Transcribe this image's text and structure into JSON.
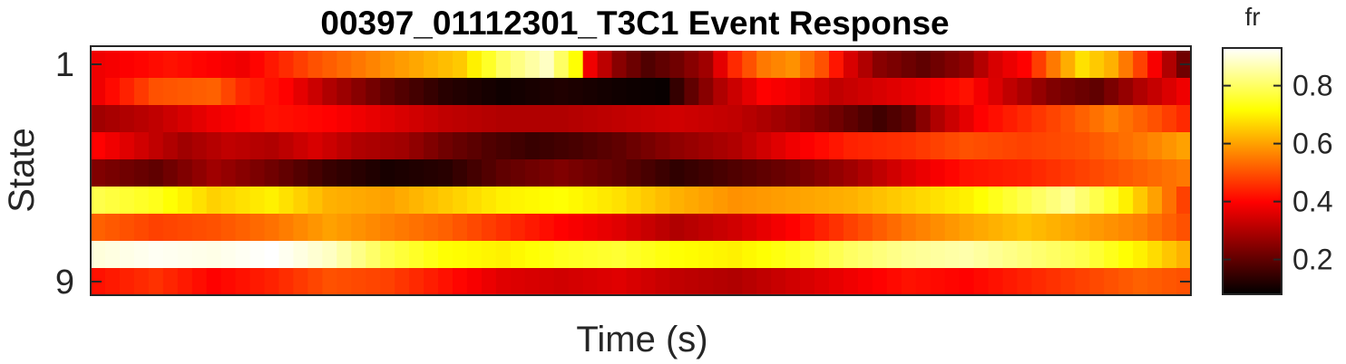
{
  "chart_data": {
    "type": "heatmap",
    "title": "00397_01112301_T3C1 Event Response",
    "xlabel": "Time (s)",
    "ylabel": "State",
    "y_tick_labels": [
      {
        "value": 1,
        "label": "1"
      },
      {
        "value": 9,
        "label": "9"
      }
    ],
    "rows": 9,
    "cols": 76,
    "colormap": "hot",
    "colorbar": {
      "label": "fr",
      "range": [
        0.08,
        0.93
      ],
      "ticks": [
        {
          "value": 0.2,
          "label": "0.2"
        },
        {
          "value": 0.4,
          "label": "0.4"
        },
        {
          "value": 0.6,
          "label": "0.6"
        },
        {
          "value": 0.8,
          "label": "0.8"
        }
      ]
    },
    "row_profiles": [
      {
        "state": 1,
        "anchors": [
          [
            0,
            0.38
          ],
          [
            5,
            0.42
          ],
          [
            10,
            0.38
          ],
          [
            15,
            0.5
          ],
          [
            20,
            0.58
          ],
          [
            25,
            0.65
          ],
          [
            28,
            0.8
          ],
          [
            31,
            0.88
          ],
          [
            33,
            0.72
          ],
          [
            34,
            0.38
          ],
          [
            36,
            0.25
          ],
          [
            38,
            0.18
          ],
          [
            40,
            0.22
          ],
          [
            42,
            0.28
          ],
          [
            44,
            0.45
          ],
          [
            46,
            0.55
          ],
          [
            48,
            0.58
          ],
          [
            50,
            0.5
          ],
          [
            52,
            0.35
          ],
          [
            54,
            0.25
          ],
          [
            57,
            0.2
          ],
          [
            60,
            0.26
          ],
          [
            62,
            0.35
          ],
          [
            64,
            0.4
          ],
          [
            66,
            0.55
          ],
          [
            68,
            0.68
          ],
          [
            70,
            0.62
          ],
          [
            72,
            0.48
          ],
          [
            74,
            0.3
          ],
          [
            75,
            0.22
          ]
        ]
      },
      {
        "state": 2,
        "anchors": [
          [
            0,
            0.38
          ],
          [
            4,
            0.5
          ],
          [
            8,
            0.52
          ],
          [
            10,
            0.45
          ],
          [
            13,
            0.4
          ],
          [
            16,
            0.3
          ],
          [
            20,
            0.2
          ],
          [
            24,
            0.13
          ],
          [
            28,
            0.1
          ],
          [
            32,
            0.12
          ],
          [
            36,
            0.1
          ],
          [
            39,
            0.09
          ],
          [
            41,
            0.2
          ],
          [
            43,
            0.3
          ],
          [
            46,
            0.4
          ],
          [
            48,
            0.38
          ],
          [
            51,
            0.32
          ],
          [
            54,
            0.35
          ],
          [
            57,
            0.38
          ],
          [
            60,
            0.42
          ],
          [
            63,
            0.32
          ],
          [
            66,
            0.24
          ],
          [
            69,
            0.2
          ],
          [
            72,
            0.3
          ],
          [
            75,
            0.38
          ]
        ]
      },
      {
        "state": 3,
        "anchors": [
          [
            0,
            0.28
          ],
          [
            4,
            0.32
          ],
          [
            8,
            0.38
          ],
          [
            12,
            0.42
          ],
          [
            16,
            0.4
          ],
          [
            20,
            0.36
          ],
          [
            24,
            0.32
          ],
          [
            28,
            0.3
          ],
          [
            32,
            0.3
          ],
          [
            36,
            0.32
          ],
          [
            40,
            0.34
          ],
          [
            44,
            0.32
          ],
          [
            48,
            0.27
          ],
          [
            51,
            0.22
          ],
          [
            54,
            0.16
          ],
          [
            56,
            0.2
          ],
          [
            58,
            0.3
          ],
          [
            61,
            0.4
          ],
          [
            64,
            0.45
          ],
          [
            67,
            0.5
          ],
          [
            70,
            0.56
          ],
          [
            73,
            0.5
          ],
          [
            75,
            0.45
          ]
        ]
      },
      {
        "state": 4,
        "anchors": [
          [
            0,
            0.4
          ],
          [
            3,
            0.34
          ],
          [
            6,
            0.28
          ],
          [
            9,
            0.32
          ],
          [
            12,
            0.3
          ],
          [
            15,
            0.35
          ],
          [
            18,
            0.3
          ],
          [
            21,
            0.28
          ],
          [
            24,
            0.22
          ],
          [
            27,
            0.18
          ],
          [
            30,
            0.15
          ],
          [
            33,
            0.17
          ],
          [
            36,
            0.2
          ],
          [
            40,
            0.26
          ],
          [
            44,
            0.3
          ],
          [
            48,
            0.38
          ],
          [
            52,
            0.44
          ],
          [
            56,
            0.46
          ],
          [
            60,
            0.5
          ],
          [
            64,
            0.48
          ],
          [
            68,
            0.5
          ],
          [
            72,
            0.55
          ],
          [
            75,
            0.6
          ]
        ]
      },
      {
        "state": 5,
        "anchors": [
          [
            0,
            0.24
          ],
          [
            4,
            0.2
          ],
          [
            8,
            0.28
          ],
          [
            12,
            0.22
          ],
          [
            16,
            0.15
          ],
          [
            20,
            0.11
          ],
          [
            24,
            0.13
          ],
          [
            28,
            0.2
          ],
          [
            32,
            0.24
          ],
          [
            36,
            0.2
          ],
          [
            40,
            0.14
          ],
          [
            44,
            0.18
          ],
          [
            48,
            0.22
          ],
          [
            52,
            0.28
          ],
          [
            56,
            0.36
          ],
          [
            60,
            0.42
          ],
          [
            64,
            0.44
          ],
          [
            68,
            0.48
          ],
          [
            72,
            0.52
          ],
          [
            75,
            0.55
          ]
        ]
      },
      {
        "state": 6,
        "anchors": [
          [
            0,
            0.78
          ],
          [
            4,
            0.74
          ],
          [
            8,
            0.66
          ],
          [
            12,
            0.7
          ],
          [
            16,
            0.62
          ],
          [
            20,
            0.6
          ],
          [
            24,
            0.65
          ],
          [
            28,
            0.7
          ],
          [
            32,
            0.72
          ],
          [
            36,
            0.68
          ],
          [
            40,
            0.62
          ],
          [
            44,
            0.58
          ],
          [
            48,
            0.6
          ],
          [
            52,
            0.62
          ],
          [
            56,
            0.66
          ],
          [
            60,
            0.7
          ],
          [
            64,
            0.78
          ],
          [
            67,
            0.84
          ],
          [
            70,
            0.75
          ],
          [
            73,
            0.6
          ],
          [
            75,
            0.48
          ]
        ]
      },
      {
        "state": 7,
        "anchors": [
          [
            0,
            0.52
          ],
          [
            4,
            0.48
          ],
          [
            8,
            0.5
          ],
          [
            12,
            0.54
          ],
          [
            16,
            0.6
          ],
          [
            20,
            0.56
          ],
          [
            24,
            0.52
          ],
          [
            28,
            0.46
          ],
          [
            32,
            0.4
          ],
          [
            36,
            0.36
          ],
          [
            40,
            0.3
          ],
          [
            44,
            0.34
          ],
          [
            48,
            0.4
          ],
          [
            52,
            0.48
          ],
          [
            56,
            0.55
          ],
          [
            60,
            0.6
          ],
          [
            64,
            0.64
          ],
          [
            68,
            0.6
          ],
          [
            72,
            0.56
          ],
          [
            75,
            0.5
          ]
        ]
      },
      {
        "state": 8,
        "anchors": [
          [
            0,
            0.9
          ],
          [
            4,
            0.92
          ],
          [
            8,
            0.91
          ],
          [
            12,
            0.93
          ],
          [
            16,
            0.88
          ],
          [
            20,
            0.78
          ],
          [
            24,
            0.72
          ],
          [
            28,
            0.7
          ],
          [
            32,
            0.74
          ],
          [
            36,
            0.76
          ],
          [
            40,
            0.72
          ],
          [
            44,
            0.7
          ],
          [
            48,
            0.74
          ],
          [
            52,
            0.8
          ],
          [
            56,
            0.84
          ],
          [
            60,
            0.86
          ],
          [
            64,
            0.82
          ],
          [
            68,
            0.78
          ],
          [
            72,
            0.7
          ],
          [
            75,
            0.62
          ]
        ]
      },
      {
        "state": 9,
        "anchors": [
          [
            0,
            0.42
          ],
          [
            4,
            0.46
          ],
          [
            8,
            0.4
          ],
          [
            12,
            0.44
          ],
          [
            16,
            0.5
          ],
          [
            20,
            0.48
          ],
          [
            24,
            0.42
          ],
          [
            28,
            0.36
          ],
          [
            32,
            0.34
          ],
          [
            36,
            0.36
          ],
          [
            40,
            0.32
          ],
          [
            44,
            0.3
          ],
          [
            48,
            0.34
          ],
          [
            52,
            0.38
          ],
          [
            56,
            0.42
          ],
          [
            60,
            0.4
          ],
          [
            64,
            0.44
          ],
          [
            68,
            0.48
          ],
          [
            72,
            0.52
          ],
          [
            75,
            0.5
          ]
        ]
      }
    ]
  }
}
